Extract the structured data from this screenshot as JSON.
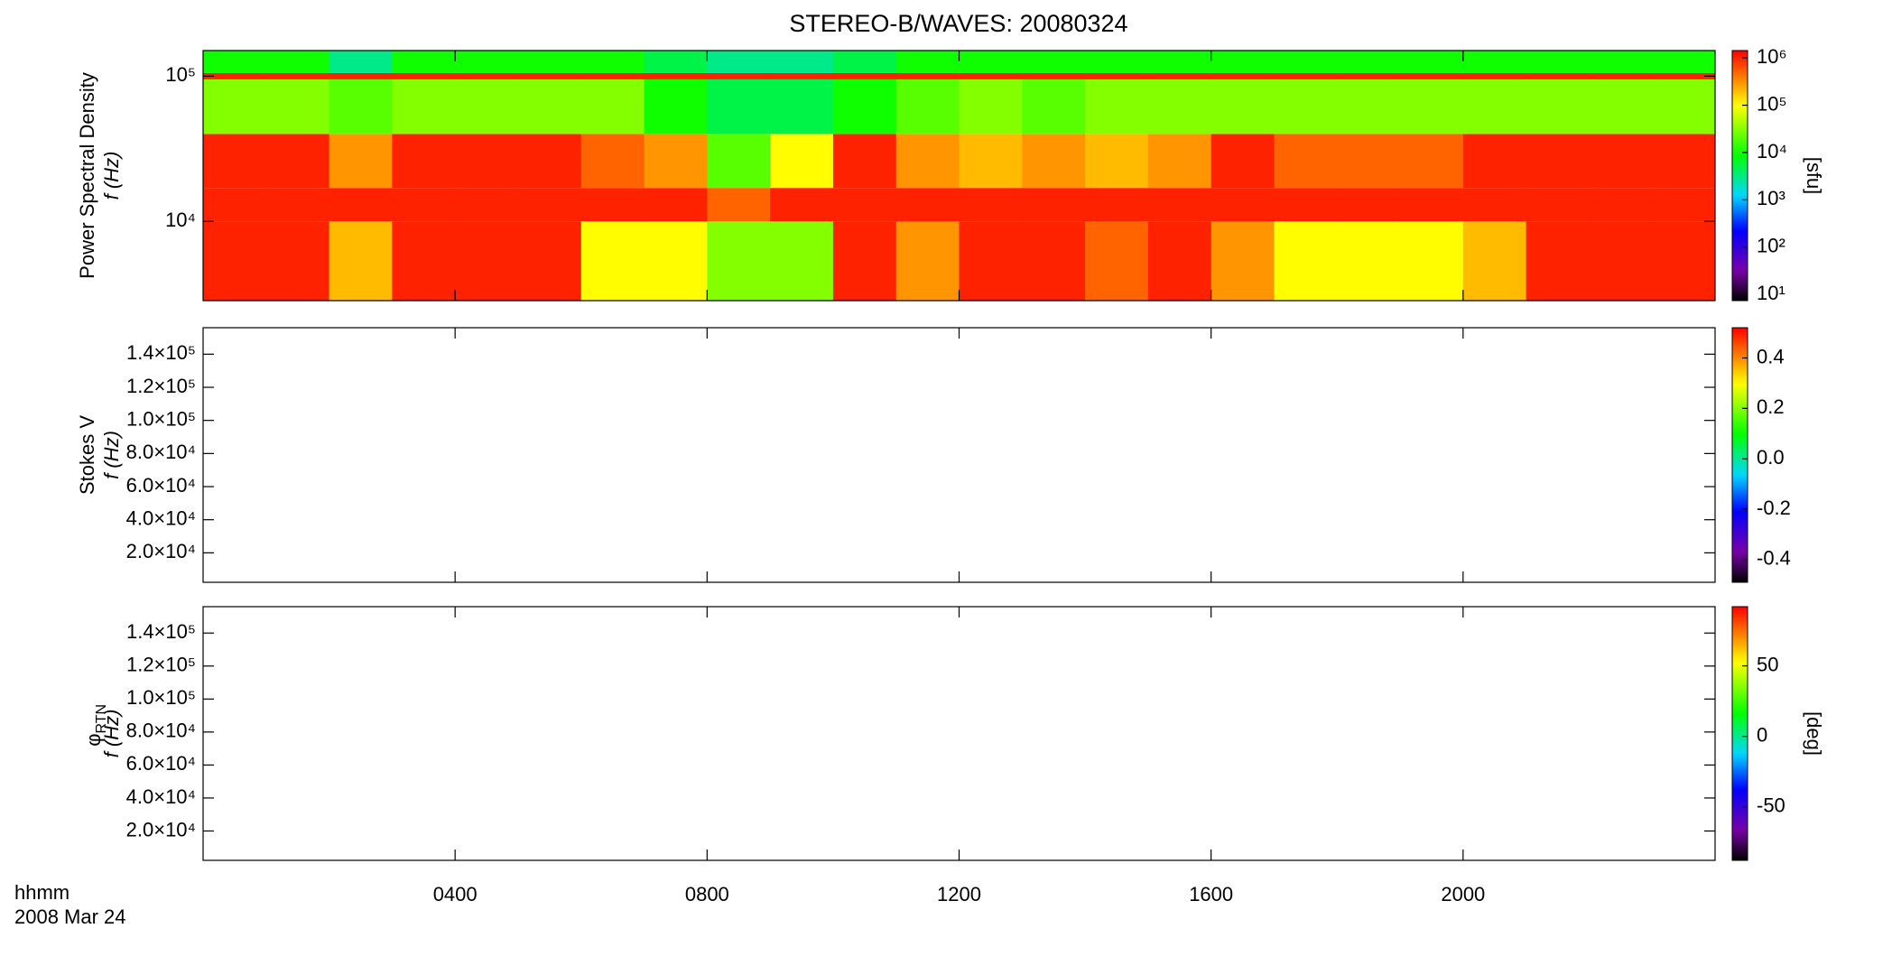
{
  "chart_data": [
    {
      "type": "heatmap",
      "title": "STEREO-B/WAVES: 20080324",
      "ylabel": "Power Spectral Density",
      "ylabel2": "f (Hz)",
      "log_y": true,
      "ylim": [
        2850,
        150000
      ],
      "yticks": [
        {
          "value": 10000,
          "label": "10⁴"
        },
        {
          "value": 100000,
          "label": "10⁵"
        }
      ],
      "xlim": [
        0,
        24
      ],
      "xticks": [
        4,
        8,
        12,
        16,
        20
      ],
      "x_bins": [
        0,
        1,
        2,
        3,
        4,
        5,
        6,
        7,
        8,
        9,
        10,
        11,
        12,
        13,
        14,
        15,
        16,
        17,
        18,
        19,
        20,
        21,
        22,
        23,
        24
      ],
      "y_bins": [
        2850,
        10000,
        17000,
        40000,
        95000,
        105000,
        150000
      ],
      "values": [
        [
          1000000,
          1000000,
          200000,
          1000000,
          1000000,
          1000000,
          100000,
          100000,
          30000,
          30000,
          1000000,
          300000,
          1000000,
          1000000,
          500000,
          1000000,
          300000,
          100000,
          100000,
          100000,
          200000,
          1000000,
          1000000,
          1000000
        ],
        [
          1000000,
          1000000,
          1000000,
          1000000,
          1000000,
          1000000,
          1000000,
          1000000,
          500000,
          1000000,
          1000000,
          1000000,
          1000000,
          1000000,
          1000000,
          1000000,
          1000000,
          1000000,
          1000000,
          1000000,
          1000000,
          1000000,
          1000000,
          1000000
        ],
        [
          1000000,
          1000000,
          300000,
          1000000,
          1000000,
          1000000,
          500000,
          300000,
          20000,
          100000,
          1000000,
          300000,
          200000,
          300000,
          200000,
          300000,
          1000000,
          500000,
          500000,
          500000,
          1000000,
          1000000,
          1000000,
          1000000
        ],
        [
          30000,
          30000,
          20000,
          30000,
          30000,
          30000,
          30000,
          10000,
          5000,
          5000,
          10000,
          20000,
          30000,
          20000,
          30000,
          30000,
          30000,
          30000,
          30000,
          30000,
          30000,
          30000,
          30000,
          30000
        ],
        [
          1000000,
          1000000,
          1000000,
          1000000,
          1000000,
          1000000,
          1000000,
          1000000,
          1000000,
          1000000,
          1000000,
          1000000,
          1000000,
          1000000,
          1000000,
          1000000,
          1000000,
          1000000,
          1000000,
          1000000,
          1000000,
          1000000,
          1000000,
          1000000
        ],
        [
          10000,
          10000,
          3000,
          10000,
          10000,
          10000,
          10000,
          5000,
          3000,
          3000,
          5000,
          10000,
          10000,
          10000,
          10000,
          10000,
          10000,
          10000,
          10000,
          10000,
          10000,
          10000,
          10000,
          10000
        ]
      ],
      "colormap": "rainbow",
      "log_color": true,
      "clim": [
        7.4,
        1430000
      ],
      "cticks": [
        {
          "value": 10,
          "label": "10¹"
        },
        {
          "value": 100,
          "label": "10²"
        },
        {
          "value": 1000,
          "label": "10³"
        },
        {
          "value": 10000,
          "label": "10⁴"
        },
        {
          "value": 100000,
          "label": "10⁵"
        },
        {
          "value": 1000000,
          "label": "10⁶"
        }
      ],
      "clabel": "[sfu]"
    },
    {
      "type": "heatmap",
      "ylabel": "Stokes V",
      "ylabel2": "f (Hz)",
      "ylim": [
        2200,
        156000
      ],
      "yticks": [
        {
          "value": 20000,
          "label": "2.0×10⁴"
        },
        {
          "value": 40000,
          "label": "4.0×10⁴"
        },
        {
          "value": 60000,
          "label": "6.0×10⁴"
        },
        {
          "value": 80000,
          "label": "8.0×10⁴"
        },
        {
          "value": 100000,
          "label": "1.0×10⁵"
        },
        {
          "value": 120000,
          "label": "1.2×10⁵"
        },
        {
          "value": 140000,
          "label": "1.4×10⁵"
        }
      ],
      "xlim": [
        0,
        24
      ],
      "xticks": [
        4,
        8,
        12,
        16,
        20
      ],
      "colormap": "rainbow",
      "clim": [
        -0.49,
        0.52
      ],
      "cticks": [
        -0.4,
        -0.2,
        {
          "value": 0,
          "label": "0.0"
        },
        0.2,
        0.4
      ]
    },
    {
      "type": "heatmap",
      "ylabel": "φ",
      "ylabel_sub": "RTN",
      "ylabel2": "f (Hz)",
      "ylim": [
        2200,
        156000
      ],
      "yticks": [
        {
          "value": 20000,
          "label": "2.0×10⁴"
        },
        {
          "value": 40000,
          "label": "4.0×10⁴"
        },
        {
          "value": 60000,
          "label": "6.0×10⁴"
        },
        {
          "value": 80000,
          "label": "8.0×10⁴"
        },
        {
          "value": 100000,
          "label": "1.0×10⁵"
        },
        {
          "value": 120000,
          "label": "1.2×10⁵"
        },
        {
          "value": 140000,
          "label": "1.4×10⁵"
        }
      ],
      "xlim": [
        0,
        24
      ],
      "xticks": [
        {
          "value": 4,
          "label": "0400"
        },
        {
          "value": 8,
          "label": "0800"
        },
        {
          "value": 12,
          "label": "1200"
        },
        {
          "value": 16,
          "label": "1600"
        },
        {
          "value": 20,
          "label": "2000"
        }
      ],
      "xlabel": "hhmm",
      "date": "2008 Mar 24",
      "colormap": "rainbow",
      "clim": [
        -88,
        92
      ],
      "cticks": [
        -50,
        0,
        50
      ],
      "clabel": "[deg]"
    }
  ]
}
